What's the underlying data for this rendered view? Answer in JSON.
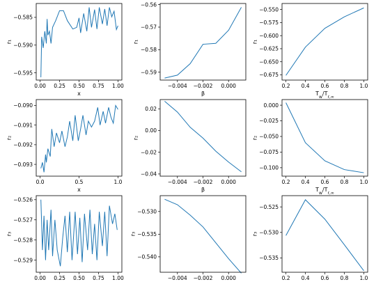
{
  "chart_data": [
    {
      "type": "line",
      "ylabel": "r₁",
      "xlabel": "x",
      "xlim": [
        -0.05,
        1.05
      ],
      "ylim": [
        -0.5963,
        -0.5825
      ],
      "xticks": [
        0.0,
        0.25,
        0.5,
        0.75,
        1.0
      ],
      "xticklabels": [
        "0.00",
        "0.25",
        "0.50",
        "0.75",
        "1.00"
      ],
      "yticks": [
        -0.595,
        -0.59,
        -0.585
      ],
      "yticklabels": [
        "−0.595",
        "−0.590",
        "−0.585"
      ],
      "x": [
        0.01,
        0.02,
        0.04,
        0.06,
        0.08,
        0.09,
        0.1,
        0.12,
        0.14,
        0.16,
        0.2,
        0.25,
        0.3,
        0.35,
        0.42,
        0.47,
        0.5,
        0.52,
        0.56,
        0.6,
        0.63,
        0.66,
        0.7,
        0.73,
        0.76,
        0.8,
        0.83,
        0.86,
        0.89,
        0.92,
        0.95,
        0.98,
        1.0
      ],
      "y": [
        -0.5958,
        -0.5885,
        -0.5905,
        -0.5875,
        -0.5897,
        -0.5853,
        -0.5882,
        -0.5875,
        -0.5897,
        -0.5868,
        -0.5856,
        -0.5838,
        -0.5838,
        -0.5856,
        -0.5871,
        -0.5868,
        -0.5851,
        -0.5878,
        -0.5843,
        -0.5875,
        -0.5832,
        -0.5868,
        -0.5836,
        -0.5871,
        -0.5832,
        -0.5862,
        -0.5835,
        -0.5865,
        -0.5832,
        -0.5849,
        -0.5839,
        -0.5872,
        -0.5865
      ]
    },
    {
      "type": "line",
      "ylabel": "r₁",
      "xlabel": "β",
      "xlim": [
        -0.00535,
        0.00135
      ],
      "ylim": [
        -0.5935,
        -0.5595
      ],
      "xticks": [
        -0.004,
        -0.002,
        0.0
      ],
      "xticklabels": [
        "−0.004",
        "−0.002",
        "0.000"
      ],
      "yticks": [
        -0.59,
        -0.58,
        -0.57,
        -0.56
      ],
      "yticklabels": [
        "−0.59",
        "−0.58",
        "−0.57",
        "−0.56"
      ],
      "x": [
        -0.005,
        -0.004,
        -0.003,
        -0.002,
        -0.001,
        0.0,
        0.001
      ],
      "y": [
        -0.5926,
        -0.5913,
        -0.5862,
        -0.5776,
        -0.5772,
        -0.5714,
        -0.5612
      ]
    },
    {
      "type": "line",
      "ylabel": "r₁",
      "xlabel": "T_w/T_{r,∞}",
      "xlim": [
        0.16,
        1.04
      ],
      "ylim": [
        -0.685,
        -0.5385
      ],
      "xticks": [
        0.2,
        0.4,
        0.6,
        0.8,
        1.0
      ],
      "xticklabels": [
        "0.2",
        "0.4",
        "0.6",
        "0.8",
        "1.0"
      ],
      "yticks": [
        -0.675,
        -0.65,
        -0.625,
        -0.6,
        -0.575,
        -0.55
      ],
      "yticklabels": [
        "−0.675",
        "−0.650",
        "−0.625",
        "−0.600",
        "−0.575",
        "−0.550"
      ],
      "x": [
        0.2,
        0.4,
        0.6,
        0.8,
        1.0
      ],
      "y": [
        -0.676,
        -0.622,
        -0.586,
        -0.564,
        -0.547
      ]
    },
    {
      "type": "line",
      "ylabel": "r₂",
      "xlabel": "x",
      "xlim": [
        -0.05,
        1.05
      ],
      "ylim": [
        -0.0936,
        -0.0897
      ],
      "xticks": [
        0.0,
        0.5,
        1.0
      ],
      "xticklabels": [
        "0.0",
        "0.5",
        "1.0"
      ],
      "yticks": [
        -0.093,
        -0.092,
        -0.091,
        -0.09
      ],
      "yticklabels": [
        "−0.093",
        "−0.092",
        "−0.091",
        "−0.090"
      ],
      "x": [
        0.01,
        0.03,
        0.05,
        0.07,
        0.08,
        0.1,
        0.13,
        0.15,
        0.18,
        0.21,
        0.25,
        0.28,
        0.32,
        0.35,
        0.38,
        0.42,
        0.45,
        0.49,
        0.52,
        0.55,
        0.59,
        0.62,
        0.66,
        0.7,
        0.74,
        0.77,
        0.81,
        0.84,
        0.88,
        0.91,
        0.94,
        0.97,
        1.0
      ],
      "y": [
        -0.0932,
        -0.0929,
        -0.0934,
        -0.0925,
        -0.0929,
        -0.0922,
        -0.0926,
        -0.0912,
        -0.0921,
        -0.0914,
        -0.0919,
        -0.0913,
        -0.0921,
        -0.0916,
        -0.0908,
        -0.0918,
        -0.0905,
        -0.0918,
        -0.0912,
        -0.0905,
        -0.0915,
        -0.0908,
        -0.0911,
        -0.0908,
        -0.0901,
        -0.091,
        -0.0903,
        -0.0909,
        -0.0901,
        -0.0906,
        -0.0909,
        -0.09,
        -0.0902
      ]
    },
    {
      "type": "line",
      "ylabel": "r₂",
      "xlabel": "β",
      "xlim": [
        -0.00535,
        0.00135
      ],
      "ylim": [
        -0.042,
        0.0285
      ],
      "xticks": [
        -0.004,
        -0.002,
        0.0
      ],
      "xticklabels": [
        "−0.004",
        "−0.002",
        "0.000"
      ],
      "yticks": [
        -0.04,
        -0.02,
        0.0,
        0.02
      ],
      "yticklabels": [
        "−0.04",
        "−0.02",
        "0.00",
        "0.02"
      ],
      "x": [
        -0.005,
        -0.004,
        -0.003,
        -0.002,
        -0.001,
        0.0,
        0.001
      ],
      "y": [
        0.027,
        0.017,
        0.003,
        -0.007,
        -0.019,
        -0.029,
        -0.038
      ]
    },
    {
      "type": "line",
      "ylabel": "r₂",
      "xlabel": "T_w/T_{r,∞}",
      "xlim": [
        0.16,
        1.04
      ],
      "ylim": [
        -0.1135,
        0.009
      ],
      "xticks": [
        0.2,
        0.4,
        0.6,
        0.8,
        1.0
      ],
      "xticklabels": [
        "0.2",
        "0.4",
        "0.6",
        "0.8",
        "1.0"
      ],
      "yticks": [
        -0.1,
        -0.075,
        -0.05,
        -0.025,
        0.0
      ],
      "yticklabels": [
        "−0.100",
        "−0.075",
        "−0.050",
        "−0.025",
        "0.000"
      ],
      "x": [
        0.2,
        0.4,
        0.6,
        0.8,
        1.0
      ],
      "y": [
        0.004,
        -0.06,
        -0.089,
        -0.103,
        -0.108
      ]
    },
    {
      "type": "line",
      "ylabel": "r₃",
      "xlabel": "x",
      "xlim": [
        -0.05,
        1.05
      ],
      "ylim": [
        -0.5296,
        -0.5258
      ],
      "xticks": [
        0.0,
        0.25,
        0.5,
        0.75,
        1.0
      ],
      "xticklabels": [
        "0.00",
        "0.25",
        "0.50",
        "0.75",
        "1.00"
      ],
      "yticks": [
        -0.529,
        -0.528,
        -0.527,
        -0.526
      ],
      "yticklabels": [
        "−0.529",
        "−0.528",
        "−0.527",
        "−0.526"
      ],
      "x": [
        0.01,
        0.03,
        0.05,
        0.07,
        0.09,
        0.11,
        0.14,
        0.16,
        0.19,
        0.22,
        0.26,
        0.29,
        0.32,
        0.35,
        0.38,
        0.41,
        0.45,
        0.48,
        0.51,
        0.54,
        0.57,
        0.61,
        0.64,
        0.67,
        0.7,
        0.73,
        0.76,
        0.8,
        0.83,
        0.86,
        0.89,
        0.93,
        0.96,
        0.99
      ],
      "y": [
        -0.526,
        -0.5285,
        -0.5268,
        -0.529,
        -0.527,
        -0.5285,
        -0.5265,
        -0.5288,
        -0.527,
        -0.5285,
        -0.5293,
        -0.5279,
        -0.5268,
        -0.5286,
        -0.5266,
        -0.529,
        -0.5266,
        -0.5287,
        -0.5269,
        -0.5291,
        -0.5267,
        -0.5285,
        -0.5265,
        -0.5287,
        -0.5272,
        -0.529,
        -0.5266,
        -0.5283,
        -0.5266,
        -0.5288,
        -0.5263,
        -0.5272,
        -0.5267,
        -0.5275
      ]
    },
    {
      "type": "line",
      "ylabel": "r₃",
      "xlabel": "β",
      "xlim": [
        -0.00535,
        0.00135
      ],
      "ylim": [
        -0.5434,
        -0.5265
      ],
      "xticks": [
        -0.004,
        -0.002,
        0.0
      ],
      "xticklabels": [
        "−0.004",
        "−0.002",
        "0.000"
      ],
      "yticks": [
        -0.54,
        -0.535,
        -0.53
      ],
      "yticklabels": [
        "−0.540",
        "−0.535",
        "−0.530"
      ],
      "x": [
        -0.005,
        -0.004,
        -0.003,
        -0.002,
        -0.001,
        0.0,
        0.001
      ],
      "y": [
        -0.5273,
        -0.5285,
        -0.5308,
        -0.5334,
        -0.5369,
        -0.5404,
        -0.5436
      ]
    },
    {
      "type": "line",
      "ylabel": "r₃",
      "xlabel": "T_w/T_{r,∞}",
      "xlim": [
        0.16,
        1.04
      ],
      "ylim": [
        -0.5378,
        -0.5228
      ],
      "xticks": [
        0.2,
        0.4,
        0.6,
        0.8,
        1.0
      ],
      "xticklabels": [
        "0.2",
        "0.4",
        "0.6",
        "0.8",
        "1.0"
      ],
      "yticks": [
        -0.535,
        -0.53,
        -0.525
      ],
      "yticklabels": [
        "−0.535",
        "−0.530",
        "−0.525"
      ],
      "x": [
        0.2,
        0.4,
        0.6,
        0.8,
        1.0
      ],
      "y": [
        -0.5306,
        -0.5236,
        -0.5274,
        -0.5324,
        -0.5375
      ]
    }
  ]
}
